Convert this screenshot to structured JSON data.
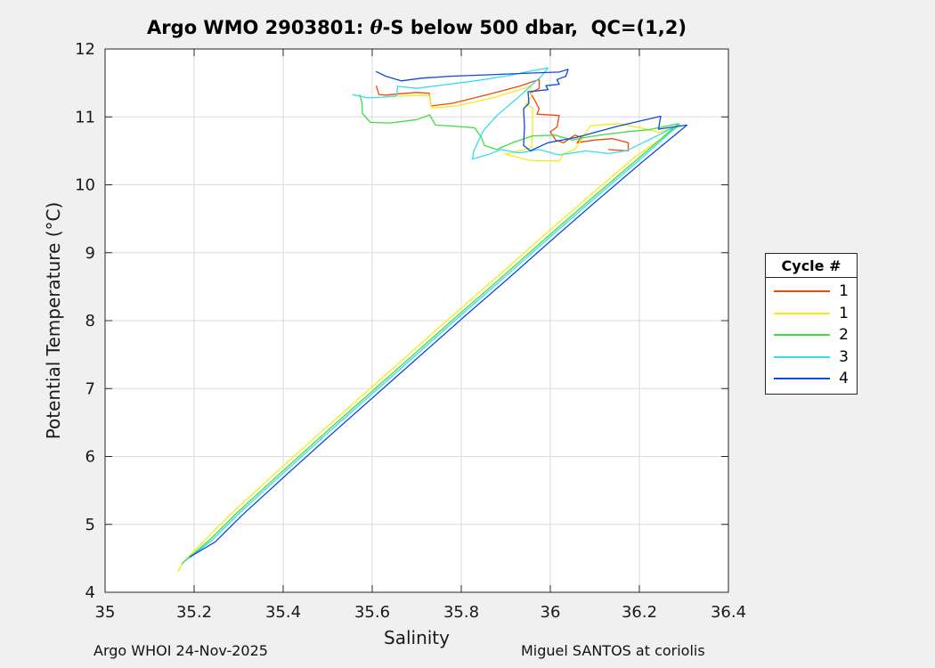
{
  "title": {
    "prefix": "Argo WMO 2903801: ",
    "theta": "θ",
    "suffix": "-S below 500 dbar,  QC=(1,2)"
  },
  "axes": {
    "x_label": "Salinity",
    "y_label": "Potential Temperature (°C)"
  },
  "footer": {
    "left": "Argo WHOI 24-Nov-2025",
    "right": "Miguel SANTOS at coriolis"
  },
  "legend": {
    "title": "Cycle #",
    "entries": [
      {
        "label": "1",
        "color": "#f4450b"
      },
      {
        "label": "1",
        "color": "#f6ec12"
      },
      {
        "label": "2",
        "color": "#3fdc3f"
      },
      {
        "label": "3",
        "color": "#36dcf3"
      },
      {
        "label": "4",
        "color": "#0b4bdb"
      }
    ]
  },
  "colors": {
    "figure_bg": "#f0f0f0",
    "plot_bg": "#ffffff",
    "grid": "#dbdbdb",
    "axis": "#262626"
  },
  "chart_data": {
    "type": "line",
    "title": "Argo WMO 2903801: θ-S below 500 dbar, QC=(1,2)",
    "xlabel": "Salinity",
    "ylabel": "Potential Temperature (°C)",
    "xlim": [
      35,
      36.4
    ],
    "ylim": [
      4,
      12
    ],
    "xticks": [
      35,
      35.2,
      35.4,
      35.6,
      35.8,
      36,
      36.2,
      36.4
    ],
    "xtick_labels": [
      "35",
      "35.2",
      "35.4",
      "35.6",
      "35.8",
      "36",
      "36.2",
      "36.4"
    ],
    "yticks": [
      4,
      5,
      6,
      7,
      8,
      9,
      10,
      11,
      12
    ],
    "ytick_labels": [
      "4",
      "5",
      "6",
      "7",
      "8",
      "9",
      "10",
      "11",
      "12"
    ],
    "grid": true,
    "legend_title": "Cycle #",
    "legend_position": "right-outside",
    "series": [
      {
        "name": "1",
        "color": "#f4450b",
        "points": [
          [
            35.609,
            11.46
          ],
          [
            35.615,
            11.33
          ],
          [
            35.63,
            11.32
          ],
          [
            35.66,
            11.34
          ],
          [
            35.7,
            11.36
          ],
          [
            35.728,
            11.35
          ],
          [
            35.732,
            11.16
          ],
          [
            35.78,
            11.2
          ],
          [
            35.86,
            11.33
          ],
          [
            35.93,
            11.45
          ],
          [
            35.975,
            11.55
          ],
          [
            35.975,
            11.42
          ],
          [
            35.955,
            11.35
          ],
          [
            35.962,
            11.28
          ],
          [
            35.975,
            11.12
          ],
          [
            35.97,
            11.04
          ],
          [
            36.02,
            11.02
          ],
          [
            36.015,
            10.85
          ],
          [
            36.0,
            10.78
          ],
          [
            36.012,
            10.66
          ],
          [
            36.03,
            10.62
          ],
          [
            36.055,
            10.73
          ],
          [
            36.07,
            10.7
          ],
          [
            36.06,
            10.62
          ],
          [
            36.1,
            10.66
          ],
          [
            36.14,
            10.68
          ],
          [
            36.175,
            10.62
          ],
          [
            36.175,
            10.5
          ],
          [
            36.13,
            10.52
          ]
        ]
      },
      {
        "name": "1",
        "color": "#f6ec12",
        "points": [
          [
            35.63,
            11.3
          ],
          [
            35.67,
            11.31
          ],
          [
            35.728,
            11.32
          ],
          [
            35.733,
            11.13
          ],
          [
            35.79,
            11.16
          ],
          [
            35.87,
            11.28
          ],
          [
            35.945,
            11.43
          ],
          [
            35.955,
            11.46
          ],
          [
            35.957,
            11.3
          ],
          [
            35.945,
            11.18
          ],
          [
            35.96,
            11.14
          ],
          [
            35.96,
            10.82
          ],
          [
            35.958,
            10.55
          ],
          [
            35.9,
            10.45
          ],
          [
            35.955,
            10.36
          ],
          [
            36.02,
            10.35
          ],
          [
            36.03,
            10.46
          ],
          [
            36.055,
            10.52
          ],
          [
            36.09,
            10.87
          ],
          [
            36.155,
            10.9
          ],
          [
            36.21,
            10.83
          ],
          [
            36.245,
            10.77
          ],
          [
            36.293,
            10.88
          ],
          [
            36.19,
            10.41
          ],
          [
            36.09,
            9.85
          ],
          [
            35.99,
            9.28
          ],
          [
            35.89,
            8.7
          ],
          [
            35.79,
            8.13
          ],
          [
            35.69,
            7.55
          ],
          [
            35.59,
            6.97
          ],
          [
            35.49,
            6.39
          ],
          [
            35.39,
            5.8
          ],
          [
            35.29,
            5.2
          ],
          [
            35.23,
            4.81
          ],
          [
            35.175,
            4.44
          ],
          [
            35.163,
            4.3
          ]
        ]
      },
      {
        "name": "2",
        "color": "#3fdc3f",
        "points": [
          [
            35.572,
            11.33
          ],
          [
            35.577,
            11.2
          ],
          [
            35.578,
            11.05
          ],
          [
            35.596,
            10.92
          ],
          [
            35.64,
            10.91
          ],
          [
            35.7,
            10.96
          ],
          [
            35.729,
            11.03
          ],
          [
            35.742,
            10.88
          ],
          [
            35.79,
            10.86
          ],
          [
            35.83,
            10.84
          ],
          [
            35.845,
            10.7
          ],
          [
            35.852,
            10.58
          ],
          [
            35.88,
            10.52
          ],
          [
            35.915,
            10.62
          ],
          [
            35.96,
            10.72
          ],
          [
            36.01,
            10.73
          ],
          [
            36.05,
            10.66
          ],
          [
            36.08,
            10.7
          ],
          [
            36.12,
            10.74
          ],
          [
            36.17,
            10.78
          ],
          [
            36.22,
            10.81
          ],
          [
            36.288,
            10.9
          ],
          [
            36.198,
            10.39
          ],
          [
            36.098,
            9.83
          ],
          [
            35.998,
            9.26
          ],
          [
            35.898,
            8.68
          ],
          [
            35.798,
            8.11
          ],
          [
            35.698,
            7.53
          ],
          [
            35.598,
            6.95
          ],
          [
            35.498,
            6.37
          ],
          [
            35.398,
            5.78
          ],
          [
            35.298,
            5.18
          ],
          [
            35.238,
            4.79
          ],
          [
            35.172,
            4.42
          ]
        ]
      },
      {
        "name": "3",
        "color": "#36dcf3",
        "points": [
          [
            35.555,
            11.33
          ],
          [
            35.59,
            11.28
          ],
          [
            35.625,
            11.29
          ],
          [
            35.655,
            11.31
          ],
          [
            35.657,
            11.45
          ],
          [
            35.7,
            11.42
          ],
          [
            35.76,
            11.47
          ],
          [
            35.83,
            11.53
          ],
          [
            35.9,
            11.6
          ],
          [
            35.96,
            11.68
          ],
          [
            35.995,
            11.72
          ],
          [
            35.98,
            11.6
          ],
          [
            35.93,
            11.3
          ],
          [
            35.88,
            11.02
          ],
          [
            35.85,
            10.8
          ],
          [
            35.828,
            10.5
          ],
          [
            35.825,
            10.38
          ],
          [
            35.862,
            10.45
          ],
          [
            35.89,
            10.52
          ],
          [
            35.93,
            10.47
          ],
          [
            35.975,
            10.52
          ],
          [
            36.02,
            10.44
          ],
          [
            36.08,
            10.5
          ],
          [
            36.13,
            10.46
          ],
          [
            36.17,
            10.5
          ],
          [
            36.23,
            10.69
          ],
          [
            36.29,
            10.89
          ],
          [
            36.201,
            10.37
          ],
          [
            36.101,
            9.81
          ],
          [
            36.001,
            9.24
          ],
          [
            35.901,
            8.66
          ],
          [
            35.801,
            8.09
          ],
          [
            35.701,
            7.51
          ],
          [
            35.601,
            6.93
          ],
          [
            35.501,
            6.35
          ],
          [
            35.401,
            5.76
          ],
          [
            35.301,
            5.16
          ],
          [
            35.241,
            4.77
          ],
          [
            35.178,
            4.45
          ]
        ]
      },
      {
        "name": "4",
        "color": "#0b4bdb",
        "points": [
          [
            35.608,
            11.67
          ],
          [
            35.63,
            11.6
          ],
          [
            35.665,
            11.53
          ],
          [
            35.71,
            11.57
          ],
          [
            35.78,
            11.6
          ],
          [
            35.86,
            11.62
          ],
          [
            35.94,
            11.64
          ],
          [
            36.02,
            11.66
          ],
          [
            36.04,
            11.7
          ],
          [
            36.035,
            11.6
          ],
          [
            36.015,
            11.55
          ],
          [
            36.02,
            11.48
          ],
          [
            35.99,
            11.46
          ],
          [
            35.995,
            11.4
          ],
          [
            35.95,
            11.37
          ],
          [
            35.952,
            11.2
          ],
          [
            35.94,
            11.12
          ],
          [
            35.942,
            10.85
          ],
          [
            35.94,
            10.58
          ],
          [
            35.955,
            10.5
          ],
          [
            35.995,
            10.62
          ],
          [
            36.06,
            10.7
          ],
          [
            36.15,
            10.86
          ],
          [
            36.248,
            11.01
          ],
          [
            36.243,
            10.82
          ],
          [
            36.307,
            10.88
          ],
          [
            36.207,
            10.34
          ],
          [
            36.107,
            9.78
          ],
          [
            36.007,
            9.21
          ],
          [
            35.907,
            8.63
          ],
          [
            35.807,
            8.06
          ],
          [
            35.707,
            7.48
          ],
          [
            35.607,
            6.9
          ],
          [
            35.507,
            6.32
          ],
          [
            35.407,
            5.73
          ],
          [
            35.307,
            5.13
          ],
          [
            35.247,
            4.74
          ],
          [
            35.19,
            4.52
          ]
        ]
      }
    ]
  }
}
